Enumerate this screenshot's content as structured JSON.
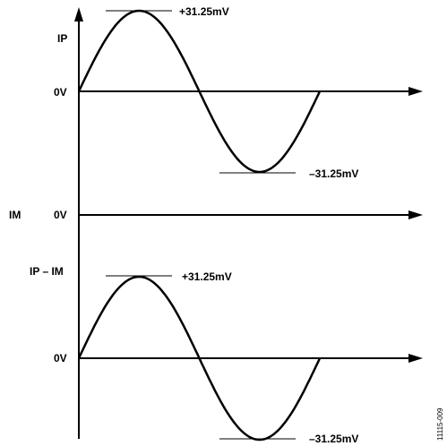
{
  "signals": [
    {
      "name": "IP",
      "zero_label": "0V",
      "peak_label": "+31.25mV",
      "trough_label": "–31.25mV"
    },
    {
      "name": "IM",
      "zero_label": "0V"
    },
    {
      "name": "IP – IM",
      "zero_label": "0V",
      "peak_label": "+31.25mV",
      "trough_label": "–31.25mV"
    }
  ],
  "figure_id": "11115-009"
}
